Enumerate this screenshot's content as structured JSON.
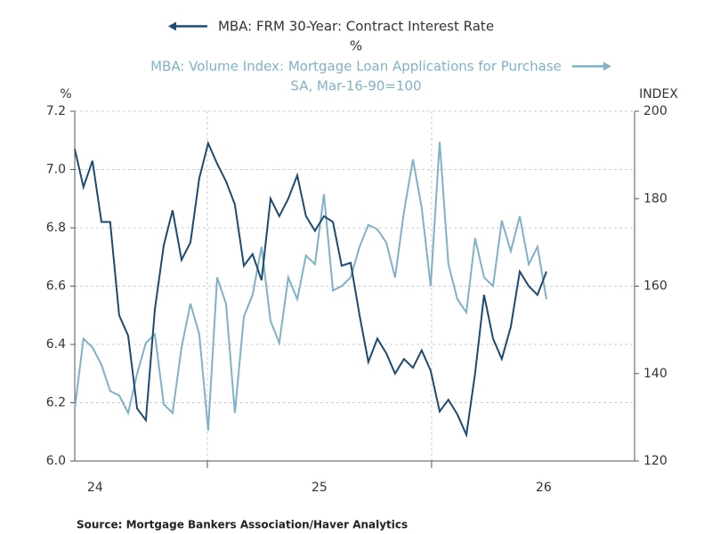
{
  "chart_data": {
    "type": "line",
    "series": [
      {
        "name": "MBA: FRM 30-Year: Contract Interest Rate",
        "unit": "%",
        "color": "#1b4a74",
        "axis": "y",
        "values": [
          7.07,
          6.94,
          7.03,
          6.82,
          6.82,
          6.5,
          6.43,
          6.18,
          6.14,
          6.52,
          6.74,
          6.86,
          6.69,
          6.75,
          6.97,
          7.09,
          7.02,
          6.96,
          6.88,
          6.67,
          6.71,
          6.62,
          6.9,
          6.84,
          6.9,
          6.98,
          6.84,
          6.79,
          6.84,
          6.82,
          6.67,
          6.68,
          6.5,
          6.34,
          6.42,
          6.37,
          6.3,
          6.35,
          6.32,
          6.38,
          6.31,
          6.17,
          6.21,
          6.16,
          6.09,
          6.3,
          6.57,
          6.42,
          6.35,
          6.46,
          6.65,
          6.6,
          6.57,
          6.65
        ]
      },
      {
        "name": "MBA: Volume Index: Mortgage Loan Applications for Purchase",
        "unit": "SA, Mar-16-90=100",
        "color": "#7fb2c6",
        "axis": "y2",
        "values": [
          132,
          148,
          146,
          142,
          136,
          135,
          131,
          140,
          147,
          149,
          133,
          131,
          146,
          156,
          149,
          127,
          162,
          156,
          131,
          153,
          158,
          169,
          152,
          147,
          162,
          157,
          167,
          165,
          181,
          159,
          160,
          162,
          169,
          174,
          173,
          170,
          162,
          177,
          189,
          178,
          160,
          193,
          165,
          157,
          154,
          171,
          162,
          160,
          175,
          168,
          176,
          165,
          169,
          157
        ]
      }
    ],
    "x": [
      2024.409,
      2024.448,
      2024.488,
      2024.528,
      2024.567,
      2024.607,
      2024.647,
      2024.687,
      2024.726,
      2024.766,
      2024.806,
      2024.845,
      2024.885,
      2024.925,
      2024.964,
      2025.004,
      2025.044,
      2025.083,
      2025.123,
      2025.163,
      2025.202,
      2025.242,
      2025.282,
      2025.321,
      2025.361,
      2025.401,
      2025.44,
      2025.48,
      2025.52,
      2025.56,
      2025.599,
      2025.639,
      2025.679,
      2025.718,
      2025.758,
      2025.798,
      2025.837,
      2025.877,
      2025.917,
      2025.956,
      2025.996,
      2026.036,
      2026.075,
      2026.115,
      2026.155,
      2026.194,
      2026.234,
      2026.274,
      2026.313,
      2026.353,
      2026.393,
      2026.433,
      2026.472,
      2026.512
    ],
    "xlim": [
      2024.409,
      2026.905
    ],
    "xticks": [
      {
        "value": 2024.5,
        "label": "24"
      },
      {
        "value": 2025.5,
        "label": "25"
      },
      {
        "value": 2026.5,
        "label": "26"
      }
    ],
    "xgrid": [
      2025,
      2026
    ],
    "ylabel": "%",
    "ylim": [
      6.0,
      7.2
    ],
    "yticks": [
      {
        "value": 6.0,
        "label": "6.0"
      },
      {
        "value": 6.2,
        "label": "6.2"
      },
      {
        "value": 6.4,
        "label": "6.4"
      },
      {
        "value": 6.6,
        "label": "6.6"
      },
      {
        "value": 6.8,
        "label": "6.8"
      },
      {
        "value": 7.0,
        "label": "7.0"
      },
      {
        "value": 7.2,
        "label": "7.2"
      }
    ],
    "y2label": "INDEX",
    "y2lim": [
      120,
      200
    ],
    "y2ticks": [
      120,
      140,
      160,
      180,
      200
    ],
    "grid": true,
    "source": "Source:  Mortgage Bankers Association/Haver Analytics"
  }
}
